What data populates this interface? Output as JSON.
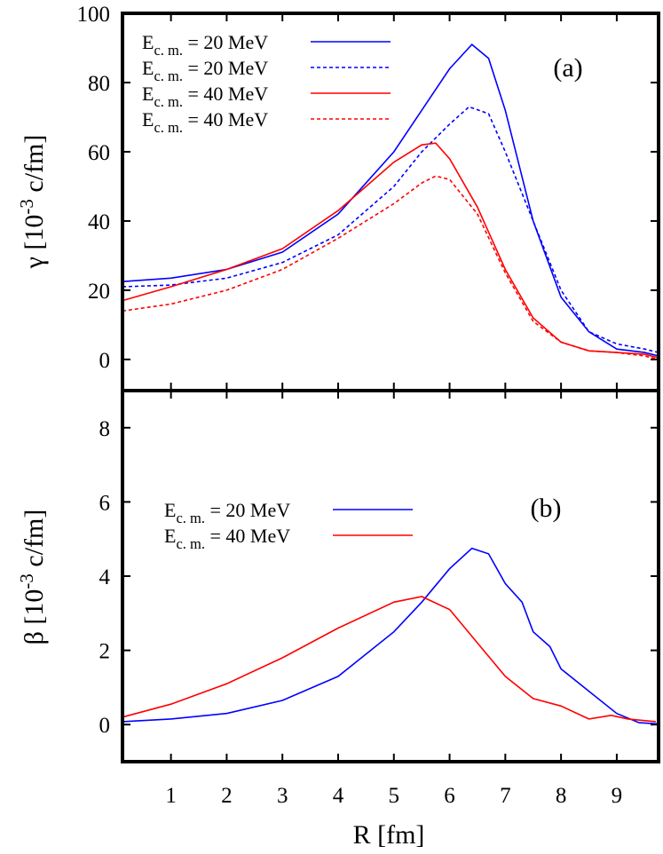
{
  "chart_data": [
    {
      "type": "line",
      "panel_label": "(a)",
      "ylabel": {
        "main": "γ [10",
        "sup": "-3",
        "rest": " c/fm]"
      },
      "xlim": [
        0.13,
        9.75
      ],
      "ylim": [
        -9,
        100
      ],
      "yticks": [
        0,
        20,
        40,
        60,
        80,
        100
      ],
      "grid": false,
      "legend_position": "top-left",
      "series": [
        {
          "name": {
            "main": "E",
            "sub": "c. m.",
            "rest": " = 20 MeV"
          },
          "color": "#0000ff",
          "dash": "solid",
          "x": [
            0.13,
            1,
            2,
            3,
            4,
            5,
            5.5,
            6,
            6.4,
            6.7,
            7,
            7.5,
            8,
            8.5,
            9,
            9.5,
            9.75
          ],
          "y": [
            22.5,
            23.5,
            26,
            31,
            42,
            60,
            72,
            84,
            91,
            87,
            72,
            40,
            18,
            8,
            3,
            2,
            1
          ]
        },
        {
          "name": {
            "main": "E",
            "sub": "c. m.",
            "rest": " = 20 MeV"
          },
          "color": "#0000ff",
          "dash": "dotted",
          "x": [
            0.13,
            1,
            2,
            3,
            4,
            5,
            5.5,
            6,
            6.35,
            6.7,
            7,
            7.5,
            8,
            8.5,
            9,
            9.5,
            9.75
          ],
          "y": [
            21,
            21.5,
            23.5,
            28,
            36,
            50,
            60,
            68,
            73,
            71,
            60,
            40,
            20,
            8,
            4.5,
            3,
            2
          ]
        },
        {
          "name": {
            "main": "E",
            "sub": "c. m.",
            "rest": " = 40 MeV"
          },
          "color": "#ff0000",
          "dash": "solid",
          "x": [
            0.13,
            1,
            2,
            3,
            4,
            4.5,
            5,
            5.5,
            5.75,
            6,
            6.5,
            7,
            7.5,
            8,
            8.5,
            9,
            9.5,
            9.75
          ],
          "y": [
            17,
            21,
            26,
            32,
            43,
            50,
            57,
            62,
            62.5,
            58,
            44,
            26,
            12,
            5,
            2.5,
            2,
            1.5,
            0.5
          ]
        },
        {
          "name": {
            "main": "E",
            "sub": "c. m.",
            "rest": " = 40 MeV"
          },
          "color": "#ff0000",
          "dash": "dotted",
          "x": [
            0.13,
            1,
            2,
            3,
            4,
            5,
            5.5,
            5.75,
            6,
            6.5,
            7,
            7.5,
            8,
            8.5,
            9,
            9.5,
            9.75
          ],
          "y": [
            14,
            16,
            20,
            26,
            35,
            45,
            51,
            53,
            52,
            42,
            25,
            11,
            5,
            2.5,
            2,
            1,
            0
          ]
        }
      ]
    },
    {
      "type": "line",
      "panel_label": "(b)",
      "xlabel": "R [fm]",
      "ylabel": {
        "main": "β [10",
        "sup": "-3",
        "rest": " c/fm]"
      },
      "xlim": [
        0.13,
        9.75
      ],
      "ylim": [
        -1,
        9
      ],
      "xticks": [
        1,
        2,
        3,
        4,
        5,
        6,
        7,
        8,
        9
      ],
      "yticks": [
        0,
        2,
        4,
        6,
        8
      ],
      "grid": false,
      "legend_position": "center-left",
      "series": [
        {
          "name": {
            "main": "E",
            "sub": "c. m.",
            "rest": " = 20 MeV"
          },
          "color": "#0000ff",
          "dash": "solid",
          "x": [
            0.13,
            1,
            2,
            3,
            4,
            5,
            5.5,
            6,
            6.4,
            6.7,
            7,
            7.3,
            7.5,
            7.8,
            8,
            8.5,
            9,
            9.4,
            9.75
          ],
          "y": [
            0.08,
            0.15,
            0.3,
            0.65,
            1.3,
            2.5,
            3.3,
            4.2,
            4.75,
            4.6,
            3.8,
            3.3,
            2.5,
            2.1,
            1.5,
            0.9,
            0.3,
            0.05,
            0.02
          ]
        },
        {
          "name": {
            "main": "E",
            "sub": "c. m.",
            "rest": " = 40 MeV"
          },
          "color": "#ff0000",
          "dash": "solid",
          "x": [
            0.13,
            1,
            2,
            3,
            4,
            5,
            5.5,
            6,
            6.5,
            7,
            7.5,
            8,
            8.5,
            8.9,
            9.2,
            9.7
          ],
          "y": [
            0.2,
            0.55,
            1.1,
            1.8,
            2.6,
            3.3,
            3.45,
            3.1,
            2.2,
            1.3,
            0.7,
            0.5,
            0.15,
            0.25,
            0.15,
            0.08
          ]
        }
      ]
    }
  ]
}
